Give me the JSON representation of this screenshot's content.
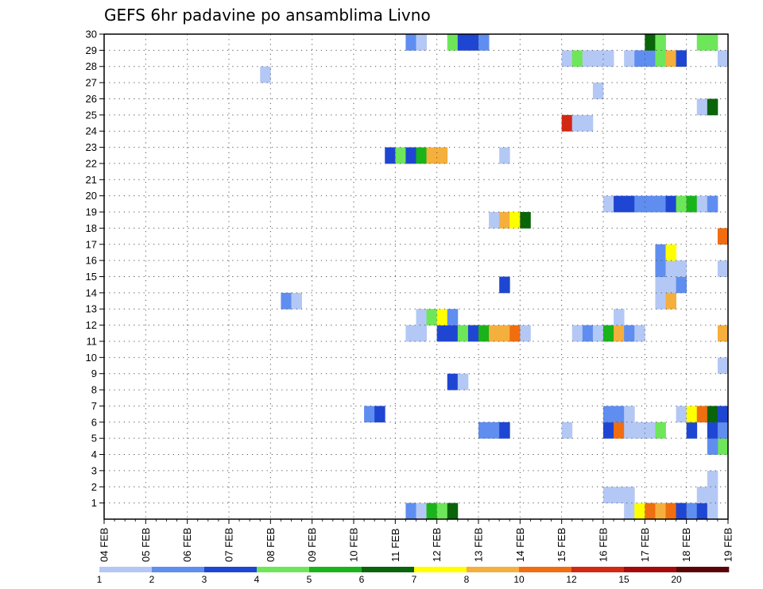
{
  "chart_data": {
    "type": "heatmap",
    "title": "GEFS 6hr padavine po ansamblima Livno",
    "xlabel": "",
    "ylabel": "",
    "x_tick_labels": [
      "04 FEB",
      "05 FEB",
      "06 FEB",
      "07 FEB",
      "08 FEB",
      "09 FEB",
      "10 FEB",
      "11 FEB",
      "12 FEB",
      "13 FEB",
      "14 FEB",
      "15 FEB",
      "16 FEB",
      "17 FEB",
      "18 FEB",
      "19 FEB"
    ],
    "y_tick_labels": [
      "1",
      "2",
      "3",
      "4",
      "5",
      "6",
      "7",
      "8",
      "9",
      "10",
      "11",
      "12",
      "13",
      "14",
      "15",
      "16",
      "17",
      "18",
      "19",
      "20",
      "21",
      "22",
      "23",
      "24",
      "25",
      "26",
      "27",
      "28",
      "29",
      "30"
    ],
    "x_range": [
      0,
      60
    ],
    "y_range": [
      0,
      30
    ],
    "grid": true,
    "legend": {
      "placement": "bottom",
      "levels": [
        "1",
        "2",
        "3",
        "4",
        "5",
        "6",
        "7",
        "8",
        "10",
        "12",
        "15",
        "20"
      ],
      "colors": [
        "#b4c8f5",
        "#5f8ef0",
        "#1e46d2",
        "#6ee65a",
        "#19b419",
        "#0a640a",
        "#ffff00",
        "#f5af3c",
        "#f06e0f",
        "#d22814",
        "#a50a0a",
        "#5a0505"
      ]
    },
    "cells": [
      {
        "member": 0,
        "step": 29,
        "cat": 2
      },
      {
        "member": 0,
        "step": 30,
        "cat": 1
      },
      {
        "member": 0,
        "step": 31,
        "cat": 5
      },
      {
        "member": 0,
        "step": 32,
        "cat": 4
      },
      {
        "member": 0,
        "step": 33,
        "cat": 6
      },
      {
        "member": 0,
        "step": 50,
        "cat": 1
      },
      {
        "member": 0,
        "step": 51,
        "cat": 7
      },
      {
        "member": 0,
        "step": 52,
        "cat": 9
      },
      {
        "member": 0,
        "step": 53,
        "cat": 8
      },
      {
        "member": 0,
        "step": 54,
        "cat": 9
      },
      {
        "member": 0,
        "step": 55,
        "cat": 3
      },
      {
        "member": 0,
        "step": 56,
        "cat": 2
      },
      {
        "member": 0,
        "step": 57,
        "cat": 3
      },
      {
        "member": 0,
        "step": 58,
        "cat": 1
      },
      {
        "member": 1,
        "step": 48,
        "cat": 1
      },
      {
        "member": 1,
        "step": 49,
        "cat": 1
      },
      {
        "member": 1,
        "step": 50,
        "cat": 1
      },
      {
        "member": 1,
        "step": 57,
        "cat": 1
      },
      {
        "member": 1,
        "step": 58,
        "cat": 1
      },
      {
        "member": 2,
        "step": 58,
        "cat": 1
      },
      {
        "member": 4,
        "step": 59,
        "cat": 4
      },
      {
        "member": 4,
        "step": 58,
        "cat": 2
      },
      {
        "member": 5,
        "step": 36,
        "cat": 2
      },
      {
        "member": 5,
        "step": 37,
        "cat": 2
      },
      {
        "member": 5,
        "step": 38,
        "cat": 3
      },
      {
        "member": 5,
        "step": 44,
        "cat": 1
      },
      {
        "member": 5,
        "step": 48,
        "cat": 3
      },
      {
        "member": 5,
        "step": 49,
        "cat": 9
      },
      {
        "member": 5,
        "step": 50,
        "cat": 1
      },
      {
        "member": 5,
        "step": 51,
        "cat": 1
      },
      {
        "member": 5,
        "step": 52,
        "cat": 1
      },
      {
        "member": 5,
        "step": 53,
        "cat": 4
      },
      {
        "member": 5,
        "step": 56,
        "cat": 3
      },
      {
        "member": 5,
        "step": 58,
        "cat": 3
      },
      {
        "member": 5,
        "step": 59,
        "cat": 2
      },
      {
        "member": 6,
        "step": 25,
        "cat": 2
      },
      {
        "member": 6,
        "step": 26,
        "cat": 3
      },
      {
        "member": 6,
        "step": 48,
        "cat": 2
      },
      {
        "member": 6,
        "step": 49,
        "cat": 2
      },
      {
        "member": 6,
        "step": 50,
        "cat": 1
      },
      {
        "member": 6,
        "step": 55,
        "cat": 1
      },
      {
        "member": 6,
        "step": 56,
        "cat": 7
      },
      {
        "member": 6,
        "step": 57,
        "cat": 9
      },
      {
        "member": 6,
        "step": 58,
        "cat": 6
      },
      {
        "member": 6,
        "step": 59,
        "cat": 3
      },
      {
        "member": 8,
        "step": 33,
        "cat": 3
      },
      {
        "member": 8,
        "step": 34,
        "cat": 1
      },
      {
        "member": 9,
        "step": 59,
        "cat": 1
      },
      {
        "member": 11,
        "step": 29,
        "cat": 1
      },
      {
        "member": 11,
        "step": 30,
        "cat": 1
      },
      {
        "member": 11,
        "step": 32,
        "cat": 3
      },
      {
        "member": 11,
        "step": 33,
        "cat": 3
      },
      {
        "member": 11,
        "step": 34,
        "cat": 4
      },
      {
        "member": 11,
        "step": 35,
        "cat": 3
      },
      {
        "member": 11,
        "step": 36,
        "cat": 5
      },
      {
        "member": 11,
        "step": 37,
        "cat": 8
      },
      {
        "member": 11,
        "step": 38,
        "cat": 8
      },
      {
        "member": 11,
        "step": 39,
        "cat": 9
      },
      {
        "member": 11,
        "step": 40,
        "cat": 1
      },
      {
        "member": 11,
        "step": 45,
        "cat": 1
      },
      {
        "member": 11,
        "step": 46,
        "cat": 2
      },
      {
        "member": 11,
        "step": 47,
        "cat": 1
      },
      {
        "member": 11,
        "step": 48,
        "cat": 5
      },
      {
        "member": 11,
        "step": 49,
        "cat": 8
      },
      {
        "member": 11,
        "step": 50,
        "cat": 2
      },
      {
        "member": 11,
        "step": 51,
        "cat": 1
      },
      {
        "member": 11,
        "step": 59,
        "cat": 8
      },
      {
        "member": 12,
        "step": 30,
        "cat": 1
      },
      {
        "member": 12,
        "step": 31,
        "cat": 4
      },
      {
        "member": 12,
        "step": 32,
        "cat": 7
      },
      {
        "member": 12,
        "step": 33,
        "cat": 2
      },
      {
        "member": 12,
        "step": 49,
        "cat": 1
      },
      {
        "member": 13,
        "step": 17,
        "cat": 2
      },
      {
        "member": 13,
        "step": 18,
        "cat": 1
      },
      {
        "member": 14,
        "step": 38,
        "cat": 3
      },
      {
        "member": 14,
        "step": 53,
        "cat": 1
      },
      {
        "member": 14,
        "step": 54,
        "cat": 1
      },
      {
        "member": 14,
        "step": 55,
        "cat": 2
      },
      {
        "member": 13,
        "step": 53,
        "cat": 1
      },
      {
        "member": 13,
        "step": 54,
        "cat": 8
      },
      {
        "member": 15,
        "step": 53,
        "cat": 2
      },
      {
        "member": 15,
        "step": 54,
        "cat": 1
      },
      {
        "member": 15,
        "step": 55,
        "cat": 1
      },
      {
        "member": 15,
        "step": 59,
        "cat": 1
      },
      {
        "member": 16,
        "step": 53,
        "cat": 2
      },
      {
        "member": 16,
        "step": 54,
        "cat": 7
      },
      {
        "member": 17,
        "step": 59,
        "cat": 9
      },
      {
        "member": 18,
        "step": 37,
        "cat": 1
      },
      {
        "member": 18,
        "step": 38,
        "cat": 8
      },
      {
        "member": 18,
        "step": 39,
        "cat": 7
      },
      {
        "member": 18,
        "step": 40,
        "cat": 6
      },
      {
        "member": 19,
        "step": 48,
        "cat": 1
      },
      {
        "member": 19,
        "step": 49,
        "cat": 3
      },
      {
        "member": 19,
        "step": 50,
        "cat": 3
      },
      {
        "member": 19,
        "step": 51,
        "cat": 2
      },
      {
        "member": 19,
        "step": 52,
        "cat": 2
      },
      {
        "member": 19,
        "step": 53,
        "cat": 2
      },
      {
        "member": 19,
        "step": 54,
        "cat": 3
      },
      {
        "member": 19,
        "step": 55,
        "cat": 4
      },
      {
        "member": 19,
        "step": 56,
        "cat": 5
      },
      {
        "member": 19,
        "step": 57,
        "cat": 1
      },
      {
        "member": 19,
        "step": 58,
        "cat": 2
      },
      {
        "member": 22,
        "step": 27,
        "cat": 3
      },
      {
        "member": 22,
        "step": 28,
        "cat": 4
      },
      {
        "member": 22,
        "step": 29,
        "cat": 3
      },
      {
        "member": 22,
        "step": 30,
        "cat": 5
      },
      {
        "member": 22,
        "step": 31,
        "cat": 8
      },
      {
        "member": 22,
        "step": 32,
        "cat": 8
      },
      {
        "member": 22,
        "step": 38,
        "cat": 1
      },
      {
        "member": 24,
        "step": 44,
        "cat": 10
      },
      {
        "member": 24,
        "step": 45,
        "cat": 1
      },
      {
        "member": 24,
        "step": 46,
        "cat": 1
      },
      {
        "member": 25,
        "step": 57,
        "cat": 1
      },
      {
        "member": 25,
        "step": 58,
        "cat": 6
      },
      {
        "member": 26,
        "step": 47,
        "cat": 1
      },
      {
        "member": 27,
        "step": 15,
        "cat": 1
      },
      {
        "member": 28,
        "step": 44,
        "cat": 1
      },
      {
        "member": 28,
        "step": 45,
        "cat": 4
      },
      {
        "member": 28,
        "step": 46,
        "cat": 1
      },
      {
        "member": 28,
        "step": 47,
        "cat": 1
      },
      {
        "member": 28,
        "step": 48,
        "cat": 1
      },
      {
        "member": 28,
        "step": 50,
        "cat": 1
      },
      {
        "member": 28,
        "step": 51,
        "cat": 2
      },
      {
        "member": 28,
        "step": 52,
        "cat": 2
      },
      {
        "member": 28,
        "step": 53,
        "cat": 4
      },
      {
        "member": 28,
        "step": 54,
        "cat": 8
      },
      {
        "member": 28,
        "step": 55,
        "cat": 3
      },
      {
        "member": 28,
        "step": 59,
        "cat": 1
      },
      {
        "member": 29,
        "step": 29,
        "cat": 2
      },
      {
        "member": 29,
        "step": 30,
        "cat": 1
      },
      {
        "member": 29,
        "step": 33,
        "cat": 4
      },
      {
        "member": 29,
        "step": 34,
        "cat": 3
      },
      {
        "member": 29,
        "step": 35,
        "cat": 3
      },
      {
        "member": 29,
        "step": 36,
        "cat": 2
      },
      {
        "member": 29,
        "step": 52,
        "cat": 6
      },
      {
        "member": 29,
        "step": 53,
        "cat": 4
      },
      {
        "member": 29,
        "step": 57,
        "cat": 4
      },
      {
        "member": 29,
        "step": 58,
        "cat": 4
      }
    ]
  }
}
